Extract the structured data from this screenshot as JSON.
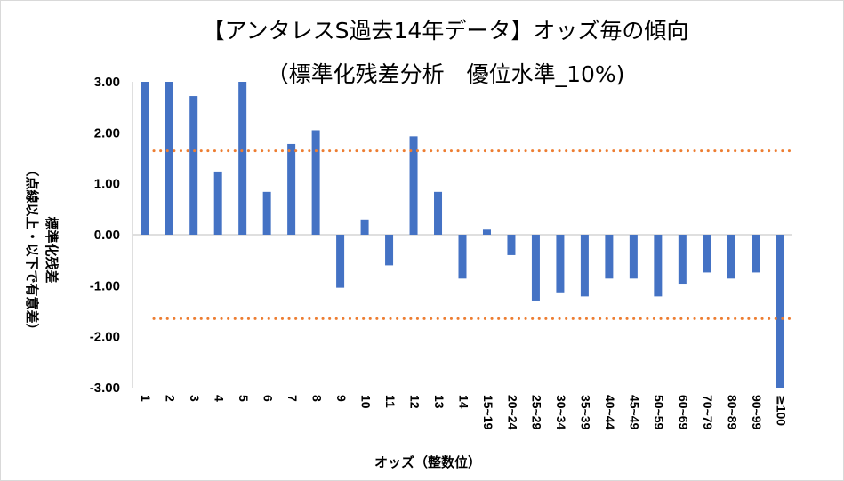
{
  "chart_data": {
    "type": "bar",
    "title": "【アンタレスS過去14年データ】オッズ毎の傾向",
    "subtitle": "（標準化残差分析　優位水準_10%)",
    "ylabel": "標準化残差",
    "ylabel_note": "（点線以上・以下で有意差）",
    "xlabel": "オッズ（整数位）",
    "categories": [
      "1",
      "2",
      "3",
      "4",
      "5",
      "6",
      "7",
      "8",
      "9",
      "10",
      "11",
      "12",
      "13",
      "14",
      "15~19",
      "20~24",
      "25~29",
      "30~34",
      "35~39",
      "40~44",
      "45~49",
      "50~59",
      "60~69",
      "70~79",
      "80~89",
      "90~99",
      "≧100"
    ],
    "values": [
      3.0,
      3.0,
      2.72,
      1.24,
      3.0,
      0.84,
      1.78,
      2.05,
      -1.04,
      0.3,
      -0.6,
      1.93,
      0.84,
      -0.86,
      0.1,
      -0.4,
      -1.29,
      -1.13,
      -1.21,
      -0.86,
      -0.86,
      -1.21,
      -0.96,
      -0.74,
      -0.86,
      -0.74,
      -3.0
    ],
    "yticks": [
      "3.00",
      "2.00",
      "1.00",
      "0.00",
      "-1.00",
      "-2.00",
      "-3.00"
    ],
    "ylim": [
      -3,
      3
    ],
    "threshold": 1.645,
    "grid": false,
    "legend": "none",
    "bar_color": "#4472c4",
    "threshold_color": "#ed7d31"
  }
}
